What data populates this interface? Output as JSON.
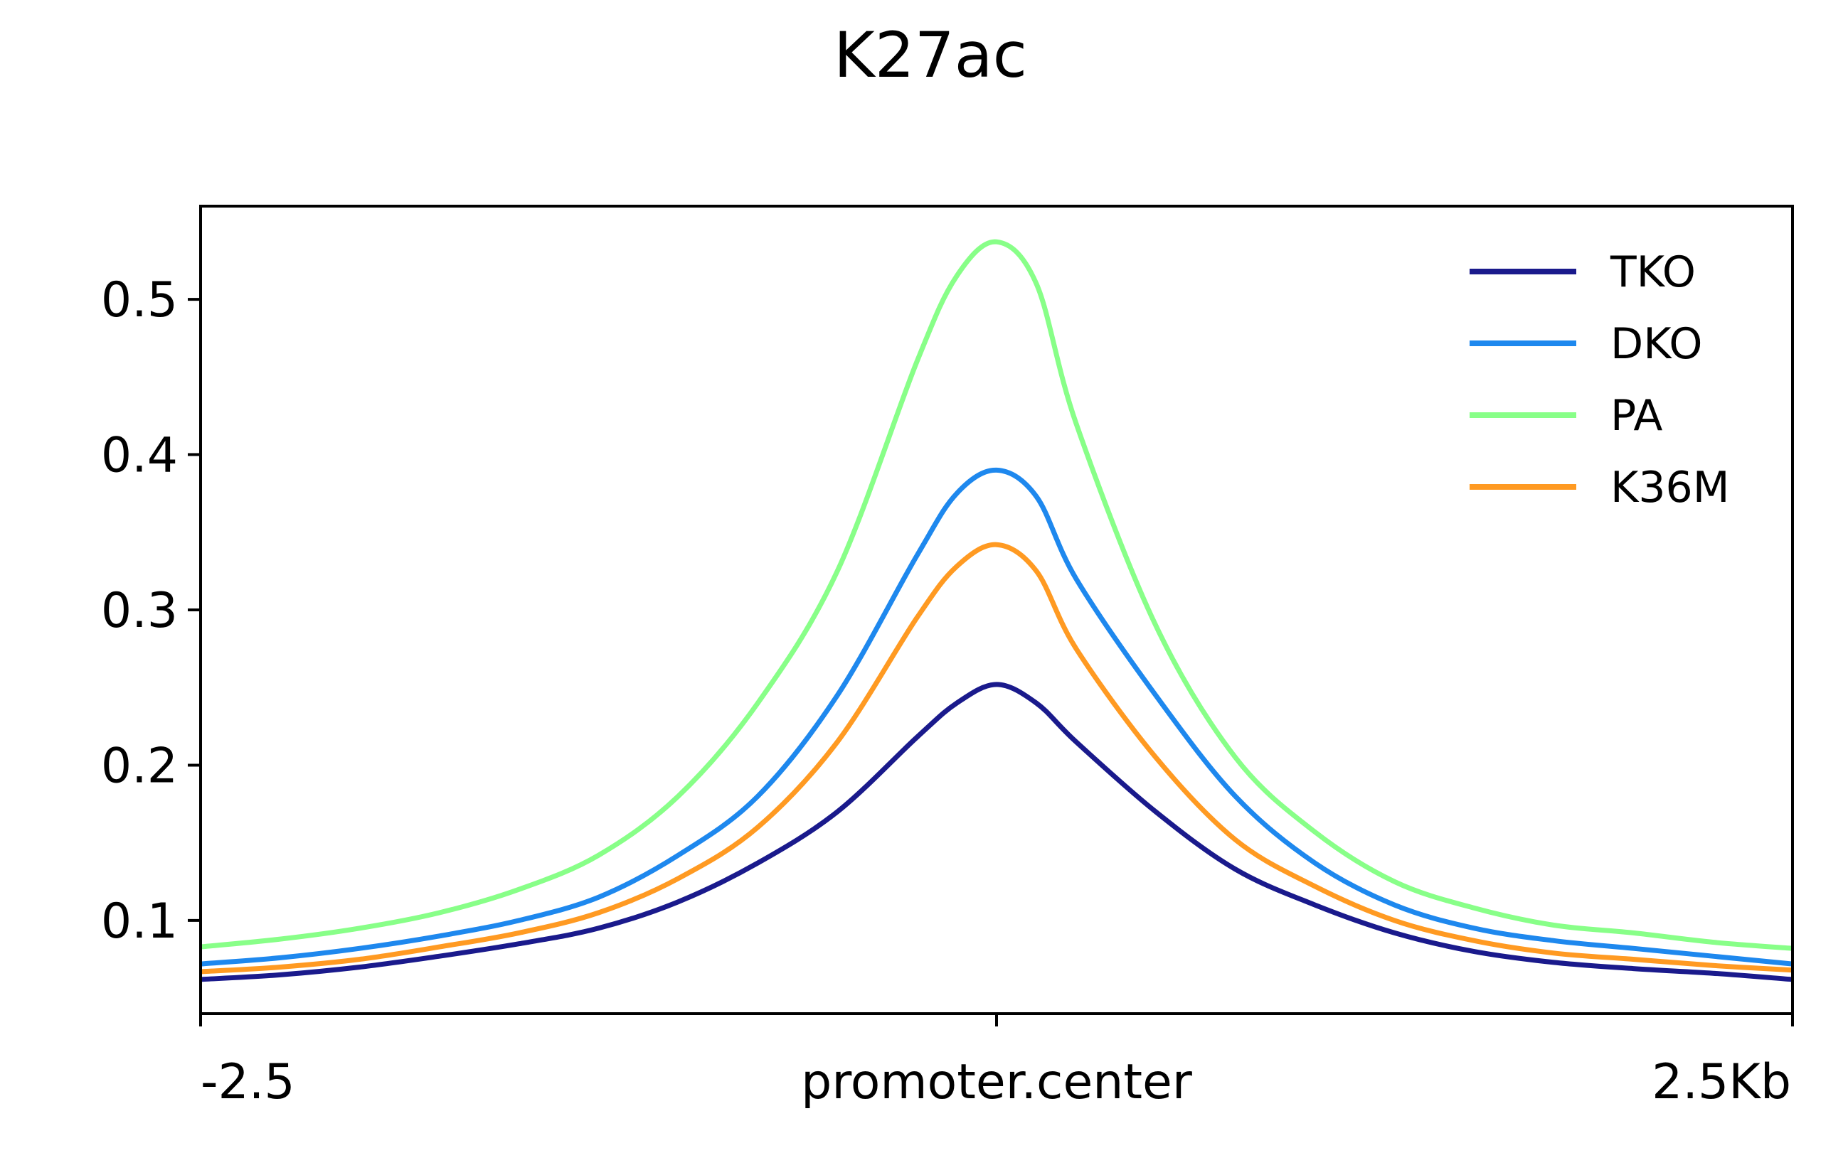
{
  "chart_data": {
    "type": "line",
    "title": "K27ac",
    "xlabel": "",
    "ylabel": "",
    "x_tick_labels": [
      "-2.5",
      "promoter.center",
      "2.5Kb"
    ],
    "x_unit": "kb from promoter center",
    "xlim": [
      -2.5,
      2.5
    ],
    "ylim": [
      0.04,
      0.56
    ],
    "y_ticks": [
      0.1,
      0.2,
      0.3,
      0.4,
      0.5
    ],
    "y_tick_labels": [
      "0.1",
      "0.2",
      "0.3",
      "0.4",
      "0.5"
    ],
    "grid": false,
    "legend_position": "top-right",
    "x": [
      -2.5,
      -2.25,
      -2.0,
      -1.75,
      -1.5,
      -1.25,
      -1.0,
      -0.75,
      -0.5,
      -0.25,
      -0.125,
      0.0,
      0.125,
      0.25,
      0.5,
      0.75,
      1.0,
      1.25,
      1.5,
      1.75,
      2.0,
      2.25,
      2.5
    ],
    "series": [
      {
        "name": "TKO",
        "color": "#1a1a8c",
        "values": [
          0.062,
          0.065,
          0.07,
          0.077,
          0.085,
          0.095,
          0.112,
          0.137,
          0.17,
          0.218,
          0.24,
          0.252,
          0.24,
          0.215,
          0.17,
          0.133,
          0.11,
          0.092,
          0.08,
          0.073,
          0.069,
          0.066,
          0.062
        ]
      },
      {
        "name": "DKO",
        "color": "#1e88ee",
        "values": [
          0.072,
          0.076,
          0.082,
          0.09,
          0.1,
          0.115,
          0.142,
          0.18,
          0.245,
          0.335,
          0.375,
          0.39,
          0.373,
          0.32,
          0.245,
          0.18,
          0.137,
          0.11,
          0.095,
          0.087,
          0.082,
          0.077,
          0.072
        ]
      },
      {
        "name": "PA",
        "color": "#88ff88",
        "values": [
          0.083,
          0.088,
          0.095,
          0.105,
          0.12,
          0.142,
          0.18,
          0.24,
          0.325,
          0.46,
          0.515,
          0.537,
          0.51,
          0.42,
          0.29,
          0.205,
          0.157,
          0.125,
          0.108,
          0.097,
          0.092,
          0.086,
          0.082
        ]
      },
      {
        "name": "K36M",
        "color": "#ff9a22",
        "values": [
          0.067,
          0.07,
          0.075,
          0.083,
          0.092,
          0.105,
          0.127,
          0.16,
          0.215,
          0.295,
          0.328,
          0.342,
          0.325,
          0.275,
          0.205,
          0.152,
          0.122,
          0.1,
          0.087,
          0.079,
          0.075,
          0.071,
          0.068
        ]
      }
    ]
  }
}
